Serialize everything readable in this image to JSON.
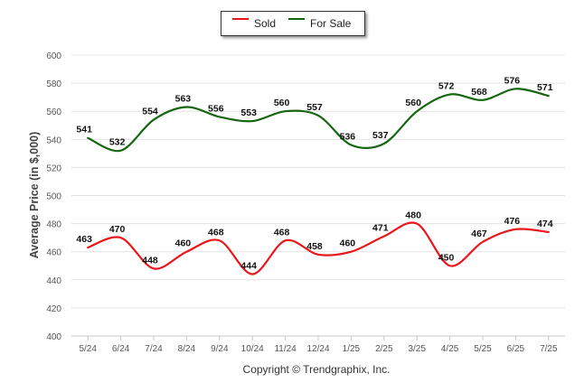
{
  "chart_data": {
    "type": "line",
    "categories": [
      "5/24",
      "6/24",
      "7/24",
      "8/24",
      "9/24",
      "10/24",
      "11/24",
      "12/24",
      "1/25",
      "2/25",
      "3/25",
      "4/25",
      "5/25",
      "6/25",
      "7/25"
    ],
    "series": [
      {
        "name": "Sold",
        "color": "#e8161b",
        "values": [
          463,
          470,
          448,
          460,
          468,
          444,
          468,
          458,
          460,
          471,
          480,
          450,
          467,
          476,
          474
        ]
      },
      {
        "name": "For Sale",
        "color": "#14660f",
        "values": [
          541,
          532,
          554,
          563,
          556,
          553,
          560,
          557,
          536,
          537,
          560,
          572,
          568,
          576,
          571
        ]
      }
    ],
    "ylabel": "Average Price (in $,000)",
    "xlabel": "",
    "title": "",
    "ylim": [
      400,
      600
    ],
    "yticks": [
      400,
      420,
      440,
      460,
      480,
      500,
      520,
      540,
      560,
      580,
      600
    ],
    "grid": true,
    "legend_position": "top-center"
  },
  "footer": {
    "copyright": "Copyright © Trendgraphix, Inc."
  }
}
